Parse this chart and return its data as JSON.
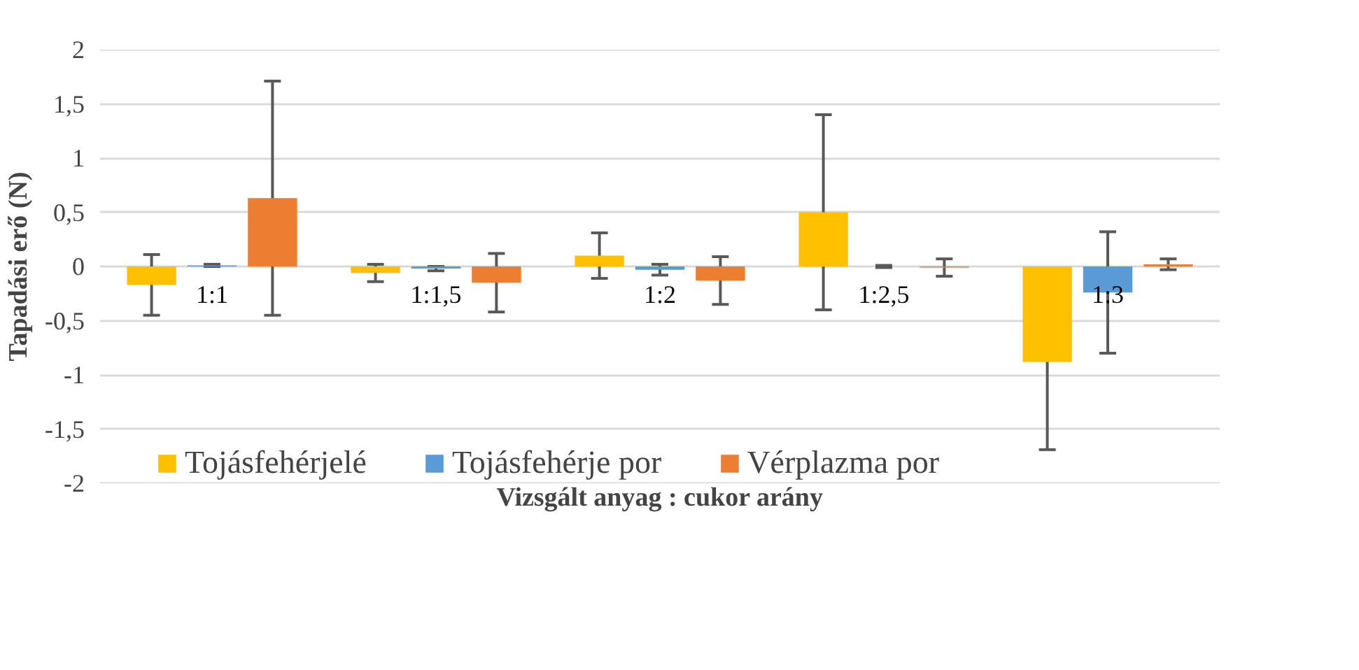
{
  "chart_data": {
    "type": "bar",
    "xlabel": "Vizsgált anyag : cukor arány",
    "ylabel": "Tapadási erő (N)",
    "categories": [
      "1:1",
      "1:1,5",
      "1:2",
      "1:2,5",
      "1:3"
    ],
    "series": [
      {
        "name": "Tojásfehérjelé",
        "color": "#ffc000",
        "values": [
          -0.17,
          -0.06,
          0.1,
          0.5,
          -0.88
        ],
        "errors": [
          0.28,
          0.08,
          0.21,
          0.9,
          0.81
        ]
      },
      {
        "name": "Tojásfehérje por",
        "color": "#5b9bd5",
        "values": [
          0.01,
          -0.02,
          -0.03,
          0.0,
          -0.24
        ],
        "errors": [
          0.01,
          0.02,
          0.05,
          0.01,
          0.56
        ]
      },
      {
        "name": "Vérplazma por",
        "color": "#ed7d31",
        "values": [
          0.63,
          -0.15,
          -0.13,
          -0.01,
          0.02
        ],
        "errors": [
          1.08,
          0.27,
          0.22,
          0.08,
          0.05
        ]
      }
    ],
    "ylim": [
      -2,
      2
    ],
    "yticks": [
      -2,
      {
        "value": -1.5,
        "label": "-1,5"
      },
      -1,
      {
        "value": -0.5,
        "label": "-0,5"
      },
      0,
      {
        "value": 0.5,
        "label": "0,5"
      },
      1,
      {
        "value": 1.5,
        "label": "1,5"
      },
      2
    ],
    "grid": "y",
    "legend": "bottom"
  }
}
